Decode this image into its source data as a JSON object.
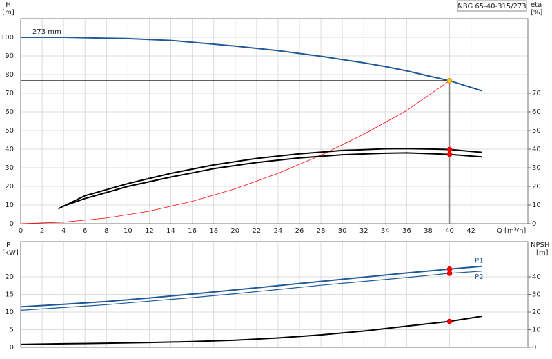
{
  "chart_data": [
    {
      "type": "line",
      "title": "NBG 65-40-315/273",
      "ylabel": "H",
      "yunit": "[m]",
      "y2label": "eta",
      "y2unit": "[%]",
      "xlabel": "Q [m³/h]",
      "xlim": [
        0,
        47.3
      ],
      "xticks": [
        0,
        2,
        4,
        6,
        8,
        10,
        12,
        14,
        16,
        18,
        20,
        22,
        24,
        26,
        28,
        30,
        32,
        34,
        36,
        38,
        40,
        42
      ],
      "ylim": [
        0,
        110
      ],
      "yticks": [
        0,
        10,
        20,
        30,
        40,
        50,
        60,
        70,
        80,
        90,
        100
      ],
      "y2lim": [
        0,
        110
      ],
      "y2ticks": [
        0,
        10,
        20,
        30,
        40,
        50,
        60,
        70
      ],
      "grid": true,
      "duty_q": 40,
      "series": [
        {
          "name": "273 mm",
          "color": "#1f5a96",
          "width": 2,
          "marker_color": "#ffc21a",
          "x": [
            0,
            4,
            8,
            10,
            14,
            16,
            20,
            24,
            28,
            32,
            34,
            36,
            38,
            40,
            43
          ],
          "values": [
            100,
            100,
            99.5,
            99.3,
            98.3,
            97.3,
            95.3,
            92.8,
            89.8,
            86.3,
            84.3,
            82,
            79.3,
            76.7,
            71.3
          ]
        },
        {
          "color": "#ff0000",
          "width": 0.8,
          "x": [
            0,
            4,
            8,
            12,
            16,
            20,
            24,
            28,
            32,
            36,
            40
          ],
          "values": [
            0,
            0.8,
            3,
            6.7,
            12,
            18.7,
            27,
            36.7,
            48,
            60.7,
            76.7
          ]
        },
        {
          "color": "#000000",
          "width": 2,
          "axis": "y2",
          "marker_color": "#ff0000",
          "x": [
            3.5,
            6,
            10,
            14,
            18,
            22,
            26,
            30,
            34,
            36,
            40,
            43
          ],
          "values": [
            8,
            15,
            21.5,
            27,
            31.5,
            35,
            37.5,
            39.3,
            40.2,
            40.3,
            39.8,
            38.3
          ]
        },
        {
          "color": "#000000",
          "width": 2,
          "axis": "y2",
          "marker_color": "#ff0000",
          "x": [
            4,
            6,
            10,
            14,
            18,
            22,
            26,
            30,
            34,
            36,
            40,
            43
          ],
          "values": [
            9.5,
            13.5,
            20,
            25,
            29.5,
            32.8,
            35.3,
            37,
            37.8,
            38,
            37.2,
            35.8
          ]
        }
      ]
    },
    {
      "type": "line",
      "ylabel": "P",
      "yunit": "[kW]",
      "y2label": "NPSH",
      "y2unit": "[m]",
      "xlim": [
        0,
        47.3
      ],
      "xticks": [
        0,
        2,
        4,
        6,
        8,
        10,
        12,
        14,
        16,
        18,
        20,
        22,
        24,
        26,
        28,
        30,
        32,
        34,
        36,
        38,
        40,
        42
      ],
      "xtick_labels": false,
      "ylim": [
        0,
        30
      ],
      "yticks": [
        0,
        5,
        10,
        15,
        20
      ],
      "y2lim": [
        0,
        60
      ],
      "y2ticks": [
        0,
        10,
        20,
        30,
        40
      ],
      "grid": true,
      "duty_q": 40,
      "series": [
        {
          "name": "P1",
          "color": "#1f5a96",
          "width": 2,
          "marker_color": "#ff0000",
          "x": [
            0,
            4,
            8,
            12,
            16,
            20,
            24,
            28,
            32,
            36,
            40,
            43
          ],
          "values": [
            11.5,
            12.2,
            13,
            14,
            15.1,
            16.3,
            17.5,
            18.7,
            19.9,
            21.1,
            22.2,
            23
          ]
        },
        {
          "name": "P2",
          "color": "#1f5a96",
          "width": 1.2,
          "marker_color": "#ff0000",
          "x": [
            0,
            4,
            8,
            12,
            16,
            20,
            24,
            28,
            32,
            36,
            40,
            43
          ],
          "values": [
            10.5,
            11.3,
            12.1,
            13.1,
            14.1,
            15.2,
            16.4,
            17.6,
            18.7,
            19.8,
            21,
            21.6
          ]
        },
        {
          "color": "#000000",
          "width": 2,
          "axis": "y2",
          "marker_color": "#ff0000",
          "x": [
            0,
            4,
            8,
            12,
            16,
            20,
            24,
            28,
            32,
            36,
            40,
            43
          ],
          "values": [
            1.6,
            2,
            2.3,
            2.7,
            3.2,
            4,
            5.3,
            7,
            9.2,
            12,
            14.7,
            17.6
          ]
        }
      ]
    }
  ]
}
